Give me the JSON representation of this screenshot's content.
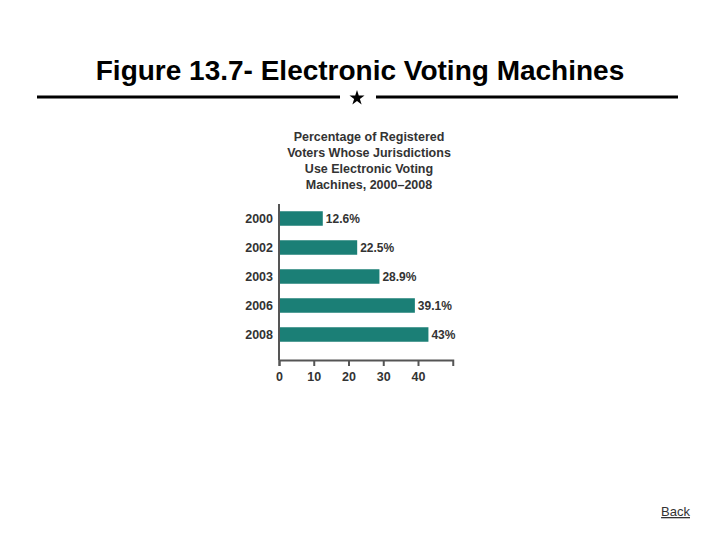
{
  "slide": {
    "title": "Figure 13.7- Electronic Voting Machines",
    "link": "Back"
  },
  "chart_data": {
    "type": "bar",
    "orientation": "horizontal",
    "title": "Percentage of Registered Voters Whose Jurisdictions Use Electronic Voting Machines, 2000–2008",
    "categories": [
      "2000",
      "2002",
      "2003",
      "2006",
      "2008"
    ],
    "values": [
      12.6,
      22.5,
      28.9,
      39.1,
      43
    ],
    "value_labels": [
      "12.6%",
      "22.5%",
      "28.9%",
      "39.1%",
      "43%"
    ],
    "data_labels": true,
    "color": "#1b7f76",
    "xlim": [
      0,
      50
    ],
    "xticks": [
      0,
      10,
      20,
      30,
      40
    ],
    "grid": false
  }
}
